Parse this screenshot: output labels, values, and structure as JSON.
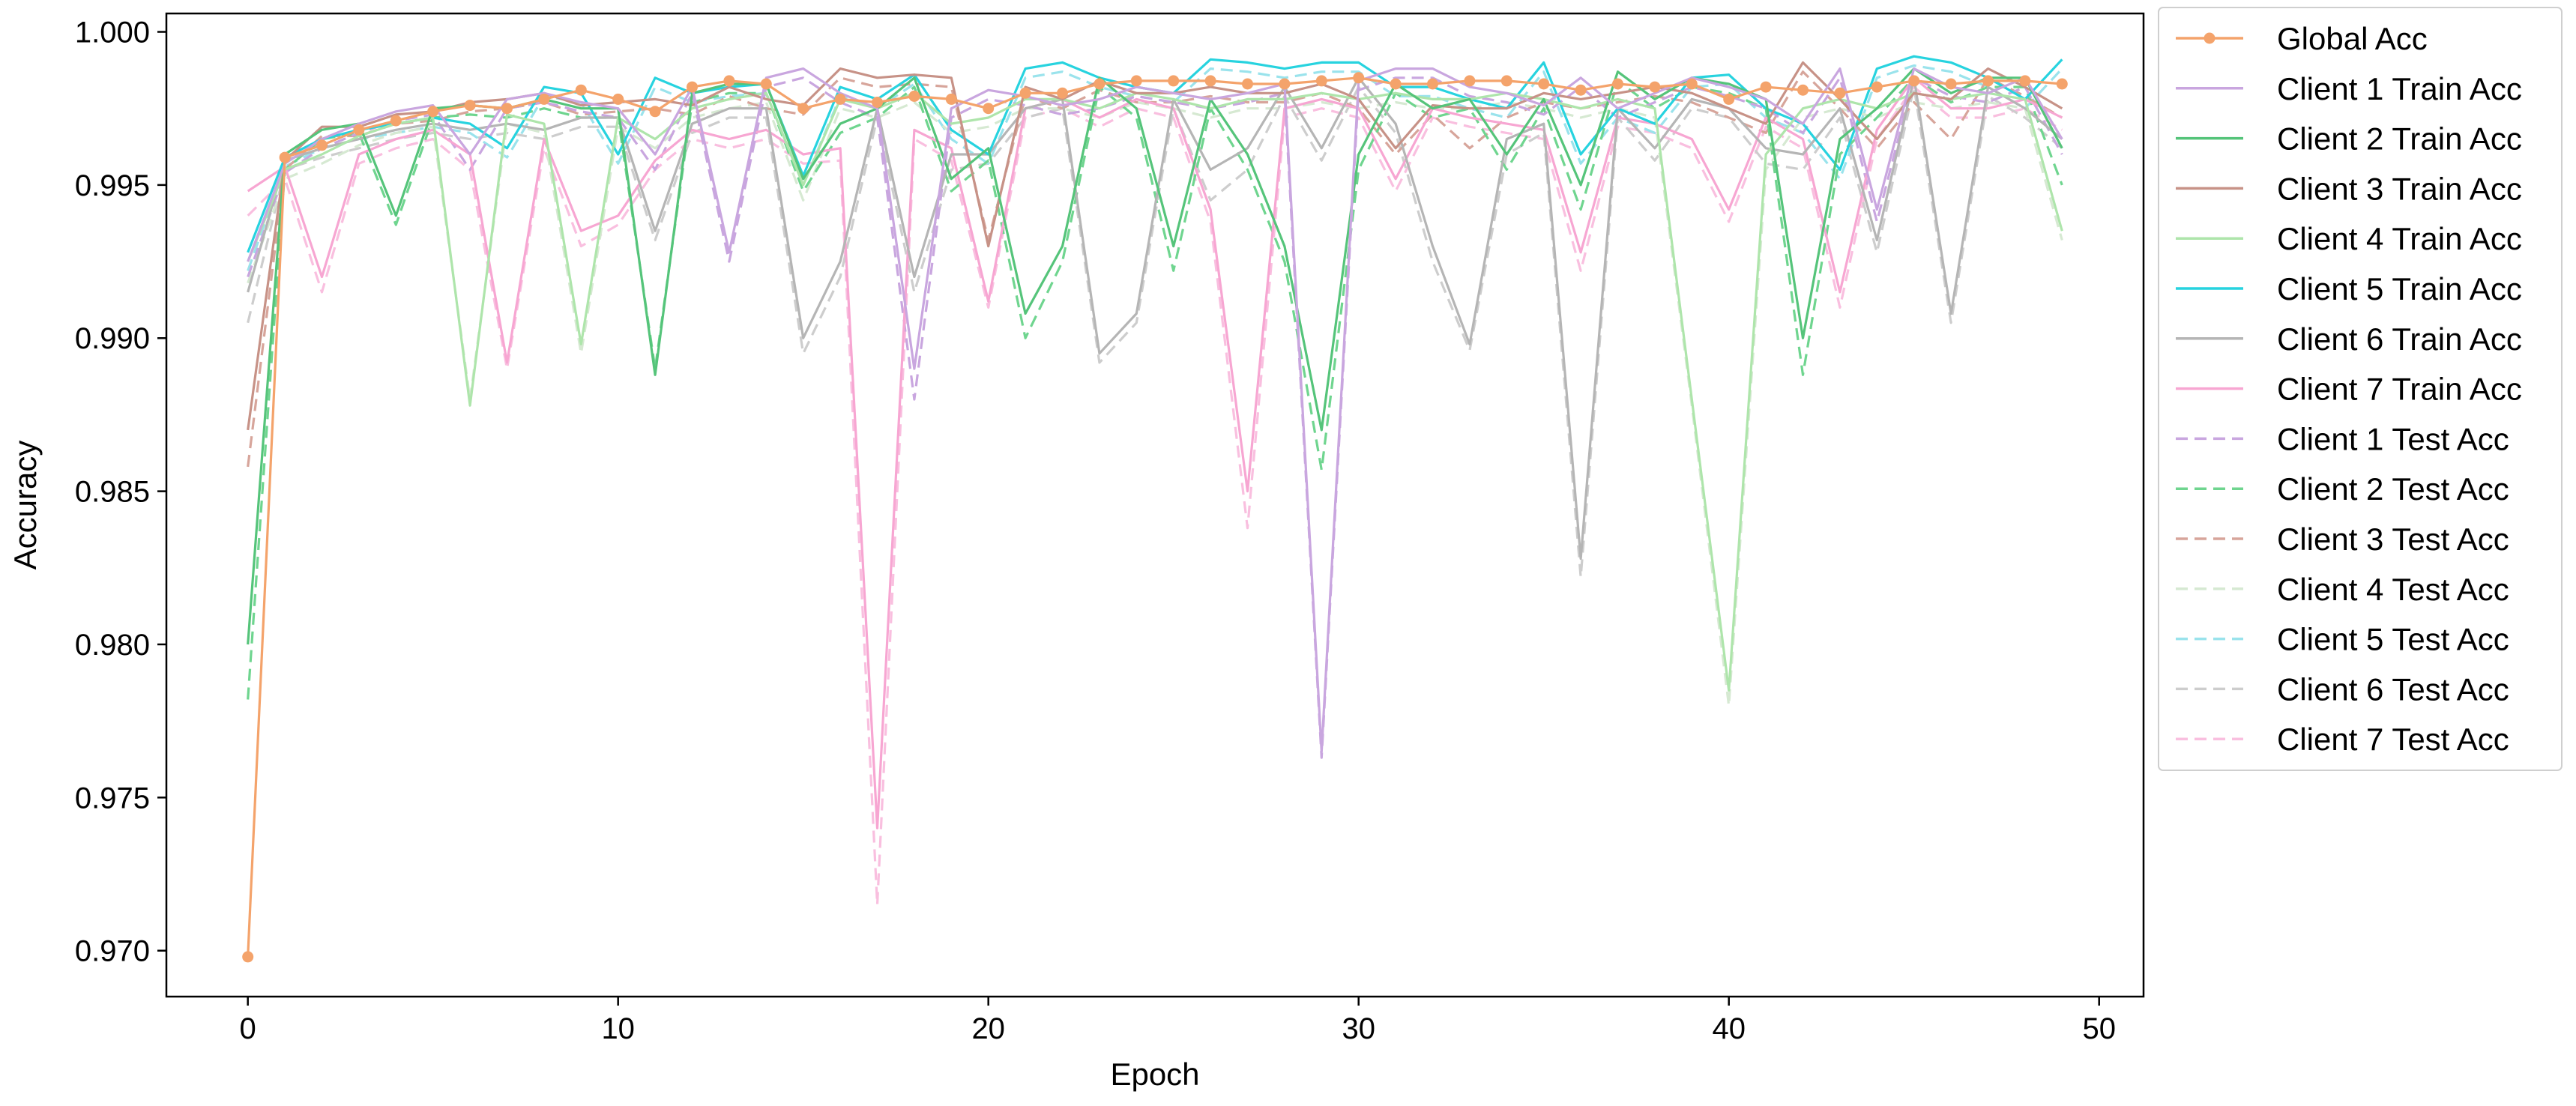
{
  "chart_data": {
    "type": "line",
    "xlabel": "Epoch",
    "ylabel": "Accuracy",
    "xlim": [
      -2.2,
      51.2
    ],
    "ylim": [
      0.9685,
      1.0006
    ],
    "xticks": [
      0,
      10,
      20,
      30,
      40,
      50
    ],
    "yticks": [
      0.97,
      0.975,
      0.98,
      0.985,
      0.99,
      0.995,
      1.0
    ],
    "ytick_labels": [
      "0.970",
      "0.975",
      "0.980",
      "0.985",
      "0.990",
      "0.995",
      "1.000"
    ],
    "legend_position": "outside-right",
    "grid": false,
    "x": [
      0,
      1,
      2,
      3,
      4,
      5,
      6,
      7,
      8,
      9,
      10,
      11,
      12,
      13,
      14,
      15,
      16,
      17,
      18,
      19,
      20,
      21,
      22,
      23,
      24,
      25,
      26,
      27,
      28,
      29,
      30,
      31,
      32,
      33,
      34,
      35,
      36,
      37,
      38,
      39,
      40,
      41,
      42,
      43,
      44,
      45,
      46,
      47,
      48,
      49
    ],
    "series": [
      {
        "name": "Global Acc",
        "color": "#f4a36b",
        "style": "solid",
        "marker": true,
        "values": [
          0.9698,
          0.9959,
          0.9963,
          0.9968,
          0.9971,
          0.9974,
          0.9976,
          0.9975,
          0.9978,
          0.9981,
          0.9978,
          0.9974,
          0.9982,
          0.9984,
          0.9983,
          0.9975,
          0.9978,
          0.9977,
          0.9979,
          0.9978,
          0.9975,
          0.998,
          0.998,
          0.9983,
          0.9984,
          0.9984,
          0.9984,
          0.9983,
          0.9983,
          0.9984,
          0.9985,
          0.9983,
          0.9983,
          0.9984,
          0.9984,
          0.9983,
          0.9981,
          0.9983,
          0.9982,
          0.9983,
          0.9978,
          0.9982,
          0.9981,
          0.998,
          0.9982,
          0.9984,
          0.9983,
          0.9984,
          0.9984,
          0.9983
        ]
      },
      {
        "name": "Client 1 Train Acc",
        "color": "#c9a6df",
        "style": "solid",
        "marker": false,
        "values": [
          0.9925,
          0.9957,
          0.9965,
          0.997,
          0.9974,
          0.9976,
          0.996,
          0.9978,
          0.998,
          0.9977,
          0.9975,
          0.996,
          0.9982,
          0.9928,
          0.9985,
          0.9988,
          0.998,
          0.9975,
          0.989,
          0.9975,
          0.9981,
          0.9979,
          0.9976,
          0.9978,
          0.9982,
          0.998,
          0.9978,
          0.998,
          0.9983,
          0.9765,
          0.9984,
          0.9988,
          0.9988,
          0.9982,
          0.998,
          0.9976,
          0.9985,
          0.9975,
          0.998,
          0.9985,
          0.9982,
          0.9978,
          0.997,
          0.9988,
          0.9942,
          0.9988,
          0.9982,
          0.998,
          0.9985,
          0.9965
        ]
      },
      {
        "name": "Client 2 Train Acc",
        "color": "#55c47a",
        "style": "solid",
        "marker": false,
        "values": [
          0.98,
          0.996,
          0.9968,
          0.997,
          0.994,
          0.9975,
          0.9976,
          0.9975,
          0.9978,
          0.9975,
          0.9975,
          0.9888,
          0.998,
          0.9983,
          0.9983,
          0.9952,
          0.997,
          0.9975,
          0.9985,
          0.9952,
          0.9962,
          0.9908,
          0.993,
          0.9985,
          0.9975,
          0.993,
          0.9978,
          0.996,
          0.993,
          0.987,
          0.996,
          0.9983,
          0.9975,
          0.9978,
          0.996,
          0.9978,
          0.995,
          0.9987,
          0.9978,
          0.9985,
          0.9983,
          0.9978,
          0.99,
          0.9965,
          0.9975,
          0.9988,
          0.998,
          0.9985,
          0.9985,
          0.9962
        ]
      },
      {
        "name": "Client 3 Train Acc",
        "color": "#c79287",
        "style": "solid",
        "marker": false,
        "values": [
          0.987,
          0.9958,
          0.9969,
          0.9969,
          0.9973,
          0.9974,
          0.9977,
          0.9978,
          0.998,
          0.9976,
          0.9977,
          0.9978,
          0.9976,
          0.9982,
          0.9978,
          0.9976,
          0.9988,
          0.9985,
          0.9986,
          0.9985,
          0.993,
          0.9982,
          0.9978,
          0.9984,
          0.998,
          0.998,
          0.9982,
          0.998,
          0.998,
          0.9983,
          0.9978,
          0.9962,
          0.9976,
          0.9975,
          0.9975,
          0.998,
          0.9978,
          0.998,
          0.9982,
          0.998,
          0.9975,
          0.997,
          0.999,
          0.9978,
          0.9965,
          0.998,
          0.9978,
          0.9988,
          0.9982,
          0.9975
        ]
      },
      {
        "name": "Client 4 Train Acc",
        "color": "#aee5ab",
        "style": "solid",
        "marker": false,
        "values": [
          0.9925,
          0.9955,
          0.996,
          0.9966,
          0.997,
          0.9972,
          0.9878,
          0.9973,
          0.997,
          0.9898,
          0.9972,
          0.9965,
          0.9975,
          0.9978,
          0.998,
          0.995,
          0.9978,
          0.9975,
          0.998,
          0.997,
          0.9972,
          0.9978,
          0.9978,
          0.9975,
          0.998,
          0.9978,
          0.9975,
          0.9978,
          0.9978,
          0.998,
          0.9978,
          0.998,
          0.9978,
          0.9978,
          0.998,
          0.9978,
          0.9975,
          0.9978,
          0.9975,
          0.988,
          0.9785,
          0.996,
          0.9975,
          0.9978,
          0.9975,
          0.998,
          0.9978,
          0.998,
          0.9978,
          0.9935
        ]
      },
      {
        "name": "Client 5 Train Acc",
        "color": "#27d3df",
        "style": "solid",
        "marker": false,
        "values": [
          0.9928,
          0.9959,
          0.9965,
          0.9968,
          0.997,
          0.9972,
          0.997,
          0.9962,
          0.9982,
          0.998,
          0.996,
          0.9985,
          0.998,
          0.9982,
          0.9983,
          0.9953,
          0.9982,
          0.9978,
          0.9986,
          0.9968,
          0.996,
          0.9988,
          0.999,
          0.9985,
          0.9982,
          0.998,
          0.9991,
          0.999,
          0.9988,
          0.999,
          0.999,
          0.9982,
          0.9982,
          0.9978,
          0.9975,
          0.999,
          0.996,
          0.9975,
          0.997,
          0.9985,
          0.9986,
          0.9975,
          0.997,
          0.9955,
          0.9988,
          0.9992,
          0.999,
          0.9985,
          0.9978,
          0.9991
        ]
      },
      {
        "name": "Client 6 Train Acc",
        "color": "#b5b5b5",
        "style": "solid",
        "marker": false,
        "values": [
          0.9915,
          0.9958,
          0.9962,
          0.9965,
          0.9968,
          0.997,
          0.9968,
          0.997,
          0.9968,
          0.9972,
          0.9972,
          0.9935,
          0.997,
          0.9975,
          0.9975,
          0.99,
          0.9925,
          0.9975,
          0.992,
          0.996,
          0.996,
          0.9975,
          0.9978,
          0.9895,
          0.9908,
          0.9978,
          0.9955,
          0.9962,
          0.9982,
          0.9962,
          0.9985,
          0.997,
          0.993,
          0.9898,
          0.9965,
          0.997,
          0.9828,
          0.9975,
          0.9962,
          0.9978,
          0.9975,
          0.9962,
          0.996,
          0.9975,
          0.9932,
          0.9985,
          0.9908,
          0.9982,
          0.9975,
          0.9965
        ]
      },
      {
        "name": "Client 7 Train Acc",
        "color": "#f7a6d2",
        "style": "solid",
        "marker": false,
        "values": [
          0.9948,
          0.9956,
          0.992,
          0.996,
          0.9965,
          0.9968,
          0.996,
          0.9892,
          0.9965,
          0.9935,
          0.994,
          0.9958,
          0.9968,
          0.9965,
          0.9968,
          0.996,
          0.9962,
          0.974,
          0.9968,
          0.9962,
          0.9912,
          0.9975,
          0.9978,
          0.9972,
          0.9978,
          0.9975,
          0.9942,
          0.985,
          0.9975,
          0.9978,
          0.9975,
          0.9952,
          0.9975,
          0.9972,
          0.997,
          0.9968,
          0.9928,
          0.9972,
          0.997,
          0.9965,
          0.9942,
          0.9972,
          0.9965,
          0.9915,
          0.9968,
          0.9985,
          0.9975,
          0.9975,
          0.9978,
          0.9972
        ]
      },
      {
        "name": "Client 1 Test Acc",
        "color": "#c9a6df",
        "style": "dashed",
        "marker": false,
        "values": [
          0.992,
          0.9954,
          0.9962,
          0.9967,
          0.9971,
          0.9973,
          0.9955,
          0.9975,
          0.9977,
          0.9974,
          0.9972,
          0.9955,
          0.998,
          0.9925,
          0.9982,
          0.9985,
          0.9977,
          0.9972,
          0.988,
          0.9972,
          0.9978,
          0.9976,
          0.9973,
          0.9975,
          0.9979,
          0.9977,
          0.9975,
          0.9977,
          0.998,
          0.9763,
          0.9981,
          0.9985,
          0.9985,
          0.9979,
          0.9977,
          0.9973,
          0.9982,
          0.9972,
          0.9977,
          0.9982,
          0.9979,
          0.9975,
          0.9967,
          0.9985,
          0.9938,
          0.9985,
          0.9979,
          0.9977,
          0.9982,
          0.996
        ]
      },
      {
        "name": "Client 2 Test Acc",
        "color": "#6fd58f",
        "style": "dashed",
        "marker": false,
        "values": [
          0.9782,
          0.9955,
          0.9965,
          0.9967,
          0.9937,
          0.9972,
          0.9973,
          0.9972,
          0.9975,
          0.9972,
          0.9972,
          0.989,
          0.9977,
          0.998,
          0.998,
          0.9948,
          0.9967,
          0.9972,
          0.9982,
          0.9948,
          0.9958,
          0.99,
          0.9925,
          0.9982,
          0.9972,
          0.9922,
          0.9975,
          0.9955,
          0.9925,
          0.9857,
          0.9955,
          0.998,
          0.9972,
          0.9975,
          0.9955,
          0.9975,
          0.9942,
          0.9984,
          0.9975,
          0.9982,
          0.998,
          0.9975,
          0.9888,
          0.996,
          0.9972,
          0.9985,
          0.9977,
          0.9982,
          0.9982,
          0.995
        ]
      },
      {
        "name": "Client 3 Test Acc",
        "color": "#d7a59b",
        "style": "dashed",
        "marker": false,
        "values": [
          0.9858,
          0.9955,
          0.9966,
          0.9966,
          0.997,
          0.9971,
          0.9974,
          0.9975,
          0.9977,
          0.9973,
          0.9974,
          0.9975,
          0.9973,
          0.9979,
          0.9975,
          0.9973,
          0.9985,
          0.9982,
          0.9983,
          0.9982,
          0.9932,
          0.9979,
          0.9975,
          0.9981,
          0.9977,
          0.9977,
          0.9979,
          0.9977,
          0.9977,
          0.998,
          0.9975,
          0.996,
          0.9973,
          0.9962,
          0.9972,
          0.9977,
          0.9975,
          0.9977,
          0.9979,
          0.9977,
          0.9972,
          0.9967,
          0.9987,
          0.9975,
          0.9962,
          0.9977,
          0.9965,
          0.9985,
          0.9979,
          0.9972
        ]
      },
      {
        "name": "Client 4 Test Acc",
        "color": "#d6e9d2",
        "style": "dashed",
        "marker": false,
        "values": [
          0.9918,
          0.9952,
          0.9957,
          0.9963,
          0.9967,
          0.9969,
          0.988,
          0.997,
          0.9967,
          0.9895,
          0.9969,
          0.9962,
          0.9972,
          0.9975,
          0.9977,
          0.9945,
          0.9975,
          0.9972,
          0.9977,
          0.9967,
          0.9969,
          0.9975,
          0.9975,
          0.9972,
          0.9977,
          0.9975,
          0.9972,
          0.9975,
          0.9975,
          0.9977,
          0.9975,
          0.9977,
          0.9975,
          0.9975,
          0.9977,
          0.9975,
          0.9972,
          0.9975,
          0.9972,
          0.9878,
          0.978,
          0.9955,
          0.9972,
          0.9975,
          0.9972,
          0.9977,
          0.9975,
          0.9977,
          0.9975,
          0.9932
        ]
      },
      {
        "name": "Client 5 Test Acc",
        "color": "#9ae3ec",
        "style": "dashed",
        "marker": false,
        "values": [
          0.9922,
          0.9956,
          0.9962,
          0.9965,
          0.9967,
          0.9969,
          0.9967,
          0.9959,
          0.9979,
          0.9977,
          0.9957,
          0.9982,
          0.9977,
          0.9979,
          0.998,
          0.995,
          0.9979,
          0.9975,
          0.9983,
          0.9965,
          0.9957,
          0.9985,
          0.9987,
          0.9982,
          0.9979,
          0.9977,
          0.9988,
          0.9987,
          0.9985,
          0.9987,
          0.9987,
          0.9979,
          0.9979,
          0.9975,
          0.9972,
          0.9987,
          0.9957,
          0.9972,
          0.9967,
          0.9982,
          0.9983,
          0.9972,
          0.9967,
          0.9952,
          0.9985,
          0.9989,
          0.9987,
          0.9982,
          0.9975,
          0.9988
        ]
      },
      {
        "name": "Client 6 Test Acc",
        "color": "#cdcdcd",
        "style": "dashed",
        "marker": false,
        "values": [
          0.9905,
          0.9955,
          0.9959,
          0.9962,
          0.9965,
          0.9967,
          0.9965,
          0.9967,
          0.9965,
          0.9969,
          0.9969,
          0.9932,
          0.9967,
          0.9972,
          0.9972,
          0.9895,
          0.992,
          0.9972,
          0.9915,
          0.9955,
          0.9957,
          0.9972,
          0.9975,
          0.9892,
          0.9905,
          0.9975,
          0.9945,
          0.9955,
          0.9979,
          0.9958,
          0.9982,
          0.9967,
          0.9925,
          0.9896,
          0.996,
          0.9967,
          0.9822,
          0.9972,
          0.9958,
          0.9975,
          0.9972,
          0.9957,
          0.9955,
          0.9972,
          0.9928,
          0.9982,
          0.9905,
          0.9979,
          0.9972,
          0.9962
        ]
      },
      {
        "name": "Client 7 Test Acc",
        "color": "#f9bfdf",
        "style": "dashed",
        "marker": false,
        "values": [
          0.994,
          0.9952,
          0.9915,
          0.9957,
          0.9962,
          0.9965,
          0.9955,
          0.989,
          0.9962,
          0.993,
          0.9937,
          0.9955,
          0.9965,
          0.9962,
          0.9965,
          0.9957,
          0.9958,
          0.9715,
          0.9965,
          0.9958,
          0.991,
          0.9972,
          0.9975,
          0.9969,
          0.9975,
          0.9972,
          0.9938,
          0.9838,
          0.9972,
          0.9975,
          0.9972,
          0.9948,
          0.9972,
          0.9969,
          0.9967,
          0.9965,
          0.9922,
          0.9969,
          0.9967,
          0.9962,
          0.9938,
          0.9969,
          0.9962,
          0.991,
          0.9965,
          0.9982,
          0.9972,
          0.9972,
          0.9975,
          0.9968
        ]
      }
    ]
  }
}
